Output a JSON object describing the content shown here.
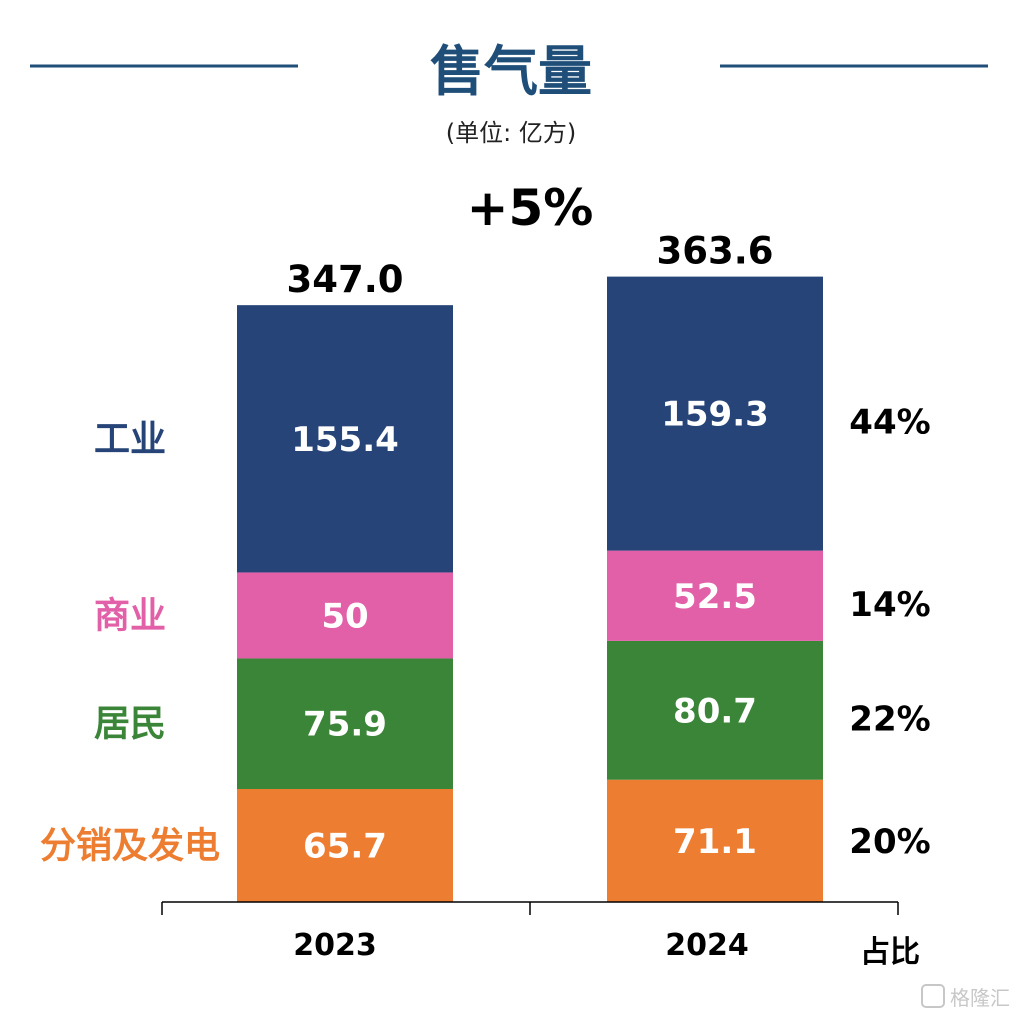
{
  "chart_data": {
    "type": "bar",
    "stacked": true,
    "title": "售气量",
    "subtitle": "(单位: 亿方)",
    "growth_label": "+5%",
    "categories": [
      "2023",
      "2024"
    ],
    "totals": [
      "347.0",
      "363.6"
    ],
    "series": [
      {
        "name": "分销及发电",
        "values": [
          65.7,
          71.1
        ],
        "labels": [
          "65.7",
          "71.1"
        ],
        "share": "20%",
        "color": "#ED7D31"
      },
      {
        "name": "居民",
        "values": [
          75.9,
          80.7
        ],
        "labels": [
          "75.9",
          "80.7"
        ],
        "share": "22%",
        "color": "#3B8539"
      },
      {
        "name": "商业",
        "values": [
          50,
          52.5
        ],
        "labels": [
          "50",
          "52.5"
        ],
        "share": "14%",
        "color": "#E160A8"
      },
      {
        "name": "工业",
        "values": [
          155.4,
          159.3
        ],
        "labels": [
          "155.4",
          "159.3"
        ],
        "share": "44%",
        "color": "#264478"
      }
    ],
    "share_header": "占比",
    "title_color": "#1F4E79"
  },
  "watermark": "格隆汇"
}
